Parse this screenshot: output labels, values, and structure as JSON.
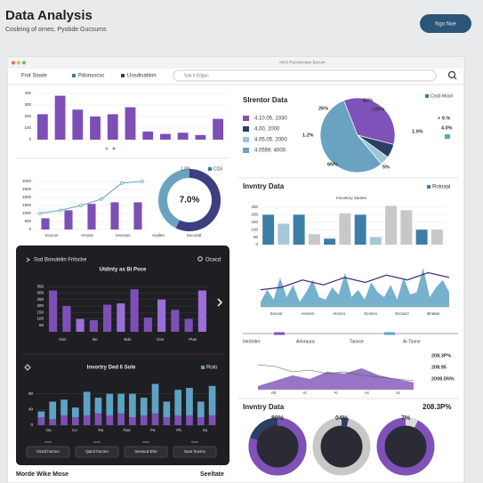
{
  "header": {
    "title": "Data Analysis",
    "subtitle": "Cosleing of ornes, Pyobde Gucsums",
    "button": "Ngo Noe"
  },
  "window": {
    "title": "Nfi B Rocmlecdan Bocum",
    "tabs": [
      "Frot Sioxie",
      "Pdonoscsc",
      "Uosdisatiion"
    ],
    "search": "Sok li Edgoc"
  },
  "bar_chart": {
    "ylim": [
      0,
      400
    ],
    "yticks": [
      0,
      100,
      200,
      300,
      400
    ],
    "color": "#7d4fb6",
    "values": [
      220,
      380,
      260,
      200,
      220,
      280,
      70,
      50,
      60,
      40,
      180
    ]
  },
  "combo_chart": {
    "ylim": [
      0,
      3500
    ],
    "yticks": [
      0,
      500,
      1000,
      1500,
      2000,
      2500,
      3000
    ],
    "color": "#7d4fb6",
    "categories": [
      "Scocon",
      "Amosn",
      "Ancsoss",
      "Aoiden",
      "Socoodt"
    ],
    "bars": [
      700,
      1200,
      1600,
      1700,
      1700
    ],
    "line": [
      1000,
      1200,
      1500,
      1900,
      2900,
      3000
    ],
    "donut_label": "7.0%",
    "legend": [
      "1,0%",
      "CC6"
    ]
  },
  "dark_panel": {
    "title": "Ssd Bovutelin Frilocke",
    "search": "Ocacd",
    "chart1": {
      "title": "Utdinty as Bi Poce",
      "ylim": [
        0,
        400
      ],
      "yticks": [
        50,
        100,
        150,
        200,
        250,
        300,
        350
      ],
      "categories": [
        "Oos",
        "Be",
        "Bdo",
        "Oos",
        "Ptas"
      ],
      "color": "#7d4fb6",
      "values": [
        320,
        200,
        100,
        90,
        210,
        220,
        330,
        110,
        250,
        170,
        100,
        320
      ]
    },
    "chart2": {
      "title": "Invortry Ded 6 Sole",
      "legend": "Roio",
      "ylim": [
        0,
        120
      ],
      "yticks": [
        0,
        40,
        80
      ],
      "categories": [
        "Oa",
        "Co",
        "Ra",
        "Ppa",
        "Pa",
        "Pb",
        "Sa"
      ],
      "series": [
        {
          "color": "#7d4fb6",
          "values": [
            20,
            15,
            25,
            20,
            25,
            30,
            25,
            30,
            20,
            25,
            30,
            20,
            25,
            25,
            20,
            25
          ]
        },
        {
          "color": "#5ea3c4",
          "values": [
            15,
            45,
            40,
            25,
            60,
            40,
            55,
            50,
            60,
            45,
            75,
            40,
            65,
            70,
            40,
            75
          ]
        }
      ]
    },
    "buttons": [
      "Ocnd hocmo",
      "Qacd hocmo",
      "Inecacd Ehe",
      "Suor hocmc"
    ]
  },
  "footer": [
    "Morde Wike Mose",
    "Seeltate"
  ],
  "pie_panel": {
    "title": "Slrentor Data",
    "legend": [
      "4.10.05. 1030",
      "4.00. 2000",
      "4.05.05. 2000",
      "4.0559. 4000"
    ],
    "values": [
      55,
      35,
      6,
      4
    ],
    "colors": [
      "#6aa3c2",
      "#7e52b8",
      "#2d3e63",
      "#9cc5d8"
    ],
    "annotations": [
      "26%",
      "80%",
      "+20%",
      "1.2%",
      "6N%",
      "5%",
      "1.0%",
      "+ 9.%",
      "4.0%"
    ],
    "legend_right": "Cosb Mosil"
  },
  "inventory": {
    "title": "Invntry Data",
    "subtitle": "Invontory Saotes",
    "legend": "Roioaal",
    "ylim": [
      0,
      280
    ],
    "yticks": [
      0,
      50,
      100,
      150,
      200,
      250
    ],
    "values": [
      200,
      140,
      200,
      70,
      40,
      210,
      200,
      50,
      260,
      230,
      100,
      100
    ],
    "colors": [
      "#3c7ea6",
      "#a9c6d8",
      "#3c7ea6",
      "#c8c8c8",
      "#3c7ea6",
      "#c8c8c8",
      "#3c7ea6",
      "#a9c6d8",
      "#c8c8c8",
      "#c8c8c8",
      "#3c7ea6",
      "#c8c8c8"
    ]
  },
  "line_chart": {
    "ylim": [
      0,
      100
    ],
    "categories": [
      "Socoor",
      "Anoscn",
      "Arosco",
      "Scoscn",
      "Sccsocr",
      "Bnatan"
    ],
    "area": [
      10,
      35,
      15,
      60,
      20,
      45,
      10,
      30,
      55,
      20,
      15,
      40,
      25,
      70,
      20,
      35,
      15,
      50,
      30,
      20,
      45,
      15,
      60,
      25,
      30,
      80,
      20,
      40,
      55,
      30
    ],
    "line": [
      35,
      40,
      55,
      45,
      60,
      50,
      65,
      55,
      70,
      60
    ]
  },
  "progress": {
    "labels": [
      "Inkrtniter",
      "Arlorauoc",
      "Taoxce",
      "Ar Tsone"
    ]
  },
  "area_chart": {
    "ylim": [
      0,
      100
    ],
    "categories": [
      "A0",
      "Al",
      "Al",
      "Ac",
      "Ac"
    ],
    "values": [
      10,
      25,
      40,
      30,
      50,
      45,
      60,
      40,
      30,
      20
    ],
    "line": [
      70,
      65,
      50,
      55,
      45,
      50,
      40,
      35,
      30,
      25
    ],
    "annotations": [
      "208.3P%",
      "208.95",
      "2008.5N%"
    ]
  },
  "donuts": {
    "title": "Invntry Data",
    "value_label": "208.3P%",
    "items": [
      {
        "label": "80%",
        "value": 80,
        "ring": "#2d3e63",
        "arc": "#7e52b8"
      },
      {
        "label": "04%",
        "value": 4,
        "ring": "#c8c8c8",
        "arc": "#2d3e63"
      },
      {
        "label": "7%",
        "value": 7,
        "ring": "#7e52b8",
        "arc": "#dcdcdc"
      }
    ]
  }
}
